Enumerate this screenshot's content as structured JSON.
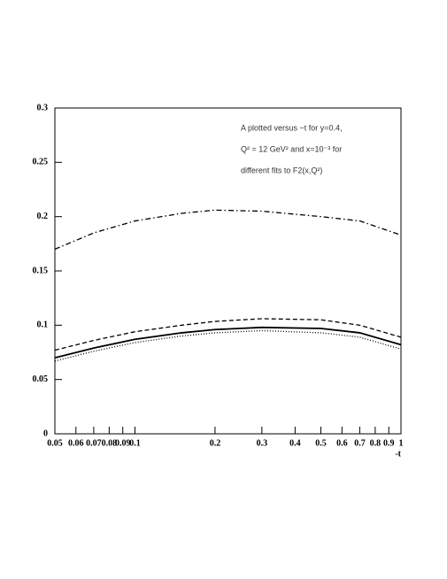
{
  "chart_data": {
    "type": "line",
    "annotation": [
      "A plotted versus −t for y=0.4,",
      "Q² = 12 GeV² and x=10⁻³ for",
      "different fits to F2(x,Q²)"
    ],
    "xlabel": "-t",
    "xscale": "log",
    "x": [
      0.05,
      0.07,
      0.1,
      0.15,
      0.2,
      0.3,
      0.5,
      0.7,
      1
    ],
    "series": [
      {
        "color": "#000000",
        "dash": "dashdot",
        "values": [
          0.17,
          0.185,
          0.196,
          0.203,
          0.206,
          0.205,
          0.2,
          0.196,
          0.183
        ]
      },
      {
        "color": "#000000",
        "dash": "dashed",
        "values": [
          0.077,
          0.086,
          0.094,
          0.1,
          0.1035,
          0.106,
          0.105,
          0.1,
          0.089
        ]
      },
      {
        "color": "#000000",
        "dash": "solid",
        "values": [
          0.07,
          0.079,
          0.087,
          0.093,
          0.096,
          0.098,
          0.097,
          0.093,
          0.082
        ]
      },
      {
        "color": "#000000",
        "dash": "dotted",
        "values": [
          0.067,
          0.076,
          0.084,
          0.09,
          0.093,
          0.095,
          0.093,
          0.089,
          0.078
        ]
      }
    ],
    "xlim": [
      0.05,
      1
    ],
    "xticks": [
      0.05,
      0.06,
      0.07,
      0.08,
      0.09,
      0.1,
      0.2,
      0.3,
      0.4,
      0.5,
      0.6,
      0.7,
      0.8,
      0.9,
      1
    ],
    "ylim": [
      0,
      0.3
    ],
    "yticks": [
      0,
      0.05,
      0.1,
      0.15,
      0.2,
      0.25,
      0.3
    ]
  }
}
